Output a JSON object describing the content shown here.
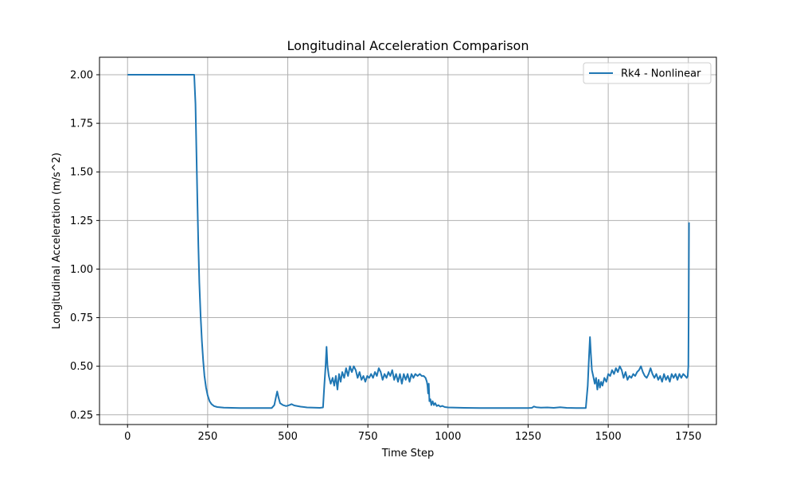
{
  "chart_data": {
    "type": "line",
    "title": "Longitudinal Acceleration Comparison",
    "xlabel": "Time Step",
    "ylabel": "Longitudinal Acceleration (m/s^2)",
    "xlim": [
      -87.5,
      1837.5
    ],
    "ylim": [
      0.2,
      2.09
    ],
    "xticks": [
      0,
      250,
      500,
      750,
      1000,
      1250,
      1500,
      1750
    ],
    "xtick_labels": [
      "0",
      "250",
      "500",
      "750",
      "1000",
      "1250",
      "1500",
      "1750"
    ],
    "yticks": [
      0.25,
      0.5,
      0.75,
      1.0,
      1.25,
      1.5,
      1.75,
      2.0
    ],
    "ytick_labels": [
      "0.25",
      "0.50",
      "0.75",
      "1.00",
      "1.25",
      "1.50",
      "1.75",
      "2.00"
    ],
    "grid": true,
    "legend_position": "upper right",
    "series": [
      {
        "name": "Rk4 - Nonlinear",
        "color": "#1f77b4",
        "points": [
          [
            0,
            2.0
          ],
          [
            100,
            2.0
          ],
          [
            200,
            2.0
          ],
          [
            208,
            2.0
          ],
          [
            212,
            1.85
          ],
          [
            215,
            1.6
          ],
          [
            218,
            1.35
          ],
          [
            221,
            1.12
          ],
          [
            224,
            0.93
          ],
          [
            228,
            0.76
          ],
          [
            232,
            0.63
          ],
          [
            236,
            0.53
          ],
          [
            240,
            0.45
          ],
          [
            245,
            0.39
          ],
          [
            250,
            0.35
          ],
          [
            256,
            0.32
          ],
          [
            262,
            0.305
          ],
          [
            270,
            0.295
          ],
          [
            280,
            0.29
          ],
          [
            300,
            0.287
          ],
          [
            350,
            0.285
          ],
          [
            400,
            0.285
          ],
          [
            450,
            0.285
          ],
          [
            458,
            0.3
          ],
          [
            463,
            0.34
          ],
          [
            467,
            0.37
          ],
          [
            471,
            0.34
          ],
          [
            476,
            0.31
          ],
          [
            485,
            0.3
          ],
          [
            495,
            0.295
          ],
          [
            505,
            0.3
          ],
          [
            512,
            0.305
          ],
          [
            520,
            0.298
          ],
          [
            540,
            0.292
          ],
          [
            560,
            0.288
          ],
          [
            600,
            0.286
          ],
          [
            610,
            0.288
          ],
          [
            614,
            0.4
          ],
          [
            618,
            0.5
          ],
          [
            621,
            0.6
          ],
          [
            624,
            0.5
          ],
          [
            628,
            0.45
          ],
          [
            634,
            0.41
          ],
          [
            640,
            0.44
          ],
          [
            645,
            0.4
          ],
          [
            650,
            0.45
          ],
          [
            655,
            0.38
          ],
          [
            660,
            0.46
          ],
          [
            665,
            0.42
          ],
          [
            670,
            0.47
          ],
          [
            676,
            0.44
          ],
          [
            682,
            0.49
          ],
          [
            688,
            0.45
          ],
          [
            694,
            0.5
          ],
          [
            700,
            0.47
          ],
          [
            706,
            0.5
          ],
          [
            712,
            0.48
          ],
          [
            718,
            0.44
          ],
          [
            724,
            0.47
          ],
          [
            730,
            0.43
          ],
          [
            736,
            0.45
          ],
          [
            742,
            0.42
          ],
          [
            748,
            0.45
          ],
          [
            754,
            0.44
          ],
          [
            760,
            0.46
          ],
          [
            766,
            0.44
          ],
          [
            772,
            0.47
          ],
          [
            778,
            0.45
          ],
          [
            784,
            0.49
          ],
          [
            790,
            0.47
          ],
          [
            796,
            0.43
          ],
          [
            802,
            0.46
          ],
          [
            808,
            0.44
          ],
          [
            814,
            0.47
          ],
          [
            820,
            0.45
          ],
          [
            826,
            0.48
          ],
          [
            832,
            0.43
          ],
          [
            838,
            0.46
          ],
          [
            844,
            0.42
          ],
          [
            850,
            0.46
          ],
          [
            856,
            0.41
          ],
          [
            862,
            0.46
          ],
          [
            868,
            0.43
          ],
          [
            874,
            0.46
          ],
          [
            880,
            0.42
          ],
          [
            886,
            0.46
          ],
          [
            892,
            0.44
          ],
          [
            898,
            0.46
          ],
          [
            905,
            0.45
          ],
          [
            912,
            0.46
          ],
          [
            918,
            0.45
          ],
          [
            924,
            0.45
          ],
          [
            930,
            0.44
          ],
          [
            934,
            0.42
          ],
          [
            936,
            0.4
          ],
          [
            938,
            0.36
          ],
          [
            940,
            0.41
          ],
          [
            942,
            0.32
          ],
          [
            945,
            0.33
          ],
          [
            948,
            0.3
          ],
          [
            952,
            0.32
          ],
          [
            956,
            0.3
          ],
          [
            960,
            0.31
          ],
          [
            965,
            0.295
          ],
          [
            970,
            0.3
          ],
          [
            976,
            0.292
          ],
          [
            982,
            0.296
          ],
          [
            990,
            0.29
          ],
          [
            1000,
            0.288
          ],
          [
            1050,
            0.286
          ],
          [
            1100,
            0.285
          ],
          [
            1150,
            0.285
          ],
          [
            1200,
            0.285
          ],
          [
            1250,
            0.285
          ],
          [
            1262,
            0.286
          ],
          [
            1268,
            0.293
          ],
          [
            1275,
            0.289
          ],
          [
            1290,
            0.287
          ],
          [
            1310,
            0.288
          ],
          [
            1330,
            0.286
          ],
          [
            1350,
            0.289
          ],
          [
            1370,
            0.286
          ],
          [
            1400,
            0.285
          ],
          [
            1430,
            0.285
          ],
          [
            1436,
            0.4
          ],
          [
            1440,
            0.55
          ],
          [
            1443,
            0.65
          ],
          [
            1446,
            0.56
          ],
          [
            1449,
            0.48
          ],
          [
            1453,
            0.45
          ],
          [
            1458,
            0.41
          ],
          [
            1462,
            0.44
          ],
          [
            1466,
            0.38
          ],
          [
            1470,
            0.43
          ],
          [
            1474,
            0.39
          ],
          [
            1478,
            0.42
          ],
          [
            1482,
            0.4
          ],
          [
            1488,
            0.44
          ],
          [
            1494,
            0.42
          ],
          [
            1500,
            0.46
          ],
          [
            1506,
            0.45
          ],
          [
            1512,
            0.48
          ],
          [
            1518,
            0.46
          ],
          [
            1524,
            0.49
          ],
          [
            1530,
            0.47
          ],
          [
            1536,
            0.5
          ],
          [
            1542,
            0.48
          ],
          [
            1548,
            0.44
          ],
          [
            1554,
            0.47
          ],
          [
            1560,
            0.43
          ],
          [
            1566,
            0.45
          ],
          [
            1572,
            0.44
          ],
          [
            1578,
            0.46
          ],
          [
            1584,
            0.45
          ],
          [
            1590,
            0.47
          ],
          [
            1596,
            0.48
          ],
          [
            1602,
            0.5
          ],
          [
            1608,
            0.47
          ],
          [
            1614,
            0.45
          ],
          [
            1620,
            0.44
          ],
          [
            1626,
            0.46
          ],
          [
            1632,
            0.49
          ],
          [
            1638,
            0.46
          ],
          [
            1644,
            0.44
          ],
          [
            1650,
            0.46
          ],
          [
            1656,
            0.43
          ],
          [
            1662,
            0.45
          ],
          [
            1668,
            0.42
          ],
          [
            1674,
            0.46
          ],
          [
            1680,
            0.43
          ],
          [
            1686,
            0.45
          ],
          [
            1692,
            0.42
          ],
          [
            1698,
            0.46
          ],
          [
            1704,
            0.44
          ],
          [
            1710,
            0.46
          ],
          [
            1716,
            0.43
          ],
          [
            1722,
            0.46
          ],
          [
            1728,
            0.44
          ],
          [
            1734,
            0.46
          ],
          [
            1740,
            0.45
          ],
          [
            1745,
            0.44
          ],
          [
            1748,
            0.45
          ],
          [
            1750,
            0.5
          ],
          [
            1751,
            0.8
          ],
          [
            1752,
            1.24
          ]
        ]
      }
    ]
  }
}
